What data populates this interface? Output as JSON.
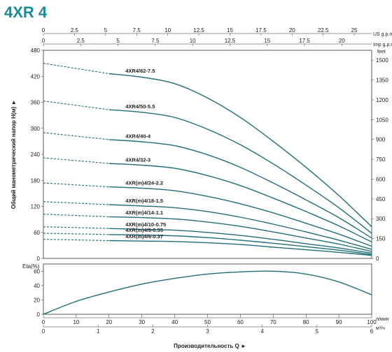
{
  "title": "4XR 4",
  "colors": {
    "title": "#1a8a96",
    "curve": "#1f6e7a",
    "axis": "#333333"
  },
  "chart_data": [
    {
      "type": "line",
      "panel": "head",
      "ylabel": "Общий манометрический напор H(м) ►",
      "ylim": [
        0,
        480
      ],
      "yticks": [
        "0",
        "60",
        "120",
        "180",
        "240",
        "300",
        "360",
        "420",
        "480"
      ],
      "yticks_right": [
        "0",
        "150",
        "300",
        "450",
        "600",
        "750",
        "900",
        "1050",
        "1200",
        "1350",
        "1500"
      ],
      "right_unit": "feet",
      "top_axes": [
        {
          "unit": "US g.p.m",
          "ticks": [
            "0",
            "2.5",
            "5",
            "7.5",
            "10",
            "12.5",
            "15",
            "17.5",
            "20",
            "22.5",
            "25"
          ],
          "max": 26.4
        },
        {
          "unit": "Imp g.p.m",
          "ticks": [
            "0",
            "2.5",
            "5",
            "7.5",
            "10",
            "12.5",
            "15",
            "17.5",
            "20"
          ],
          "max": 22.0
        }
      ],
      "x": [
        0,
        20,
        30,
        40,
        50,
        60,
        70,
        80,
        90,
        100
      ],
      "xlim": [
        0,
        100
      ],
      "series": [
        {
          "name": "4XR4/62-7.5",
          "dash_to": 20,
          "values": [
            450,
            426,
            418,
            403,
            370,
            325,
            270,
            210,
            145,
            73
          ]
        },
        {
          "name": "4XR4/50-5.5",
          "dash_to": 20,
          "values": [
            363,
            343,
            337,
            325,
            298,
            262,
            218,
            169,
            117,
            58
          ]
        },
        {
          "name": "4XR4/40-4",
          "dash_to": 20,
          "values": [
            290,
            274,
            269,
            260,
            239,
            210,
            174,
            135,
            94,
            47
          ]
        },
        {
          "name": "4XR4/32-3",
          "dash_to": 20,
          "values": [
            232,
            219,
            215,
            208,
            191,
            168,
            139,
            108,
            75,
            38
          ]
        },
        {
          "name": "4XR(m)4/24-2.2",
          "dash_to": 20,
          "values": [
            174,
            165,
            162,
            156,
            143,
            126,
            105,
            81,
            56,
            28
          ]
        },
        {
          "name": "4XR(m)4/18-1.5",
          "dash_to": 20,
          "values": [
            131,
            124,
            121,
            117,
            108,
            95,
            79,
            61,
            42,
            21
          ]
        },
        {
          "name": "4XR(m)4/14-1.1",
          "dash_to": 20,
          "values": [
            102,
            96,
            94,
            91,
            84,
            74,
            61,
            47,
            33,
            16
          ]
        },
        {
          "name": "4XR(m)4/10-0.75",
          "dash_to": 20,
          "values": [
            73,
            69,
            67,
            65,
            60,
            53,
            44,
            34,
            24,
            12
          ]
        },
        {
          "name": "4XR(m)4/8-0.55",
          "dash_to": 20,
          "values": [
            58,
            55,
            54,
            52,
            48,
            42,
            35,
            27,
            19,
            9
          ]
        },
        {
          "name": "4XR(m)4/6-0.37",
          "dash_to": 20,
          "values": [
            44,
            41,
            40,
            39,
            36,
            32,
            26,
            20,
            14,
            7
          ]
        }
      ]
    },
    {
      "type": "line",
      "panel": "efficiency",
      "ylabel": "Eta(%)",
      "ylim": [
        0,
        70
      ],
      "yticks": [
        "0",
        "20",
        "40",
        "60"
      ],
      "x": [
        0,
        10,
        20,
        30,
        40,
        50,
        60,
        70,
        80,
        90,
        100
      ],
      "series": [
        {
          "values": [
            0,
            18,
            31,
            42,
            50,
            56,
            59,
            60,
            56,
            45,
            27
          ]
        }
      ]
    }
  ],
  "bottom_axes": {
    "flow_lpm": {
      "unit": "л/мин",
      "ticks": [
        "0",
        "10",
        "20",
        "30",
        "40",
        "50",
        "60",
        "70",
        "80",
        "90",
        "100"
      ]
    },
    "flow_m3h": {
      "unit": "м³/ч",
      "ticks": [
        "0",
        "1",
        "2",
        "3",
        "4",
        "5",
        "6"
      ]
    },
    "label": "Производительность  Q  ►"
  }
}
